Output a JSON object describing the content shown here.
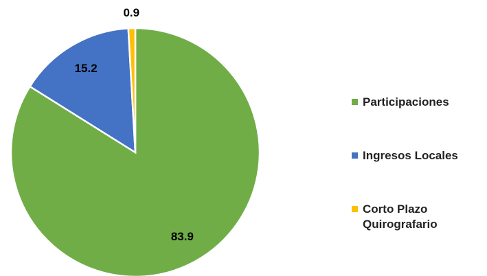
{
  "chart_data": {
    "type": "pie",
    "categories": [
      "Participaciones",
      "Ingresos Locales",
      "Corto Plazo Quirografario"
    ],
    "values": [
      83.9,
      15.2,
      0.9
    ],
    "colors": [
      "#70ad47",
      "#4472c4",
      "#ffc000"
    ],
    "legend": "right"
  }
}
